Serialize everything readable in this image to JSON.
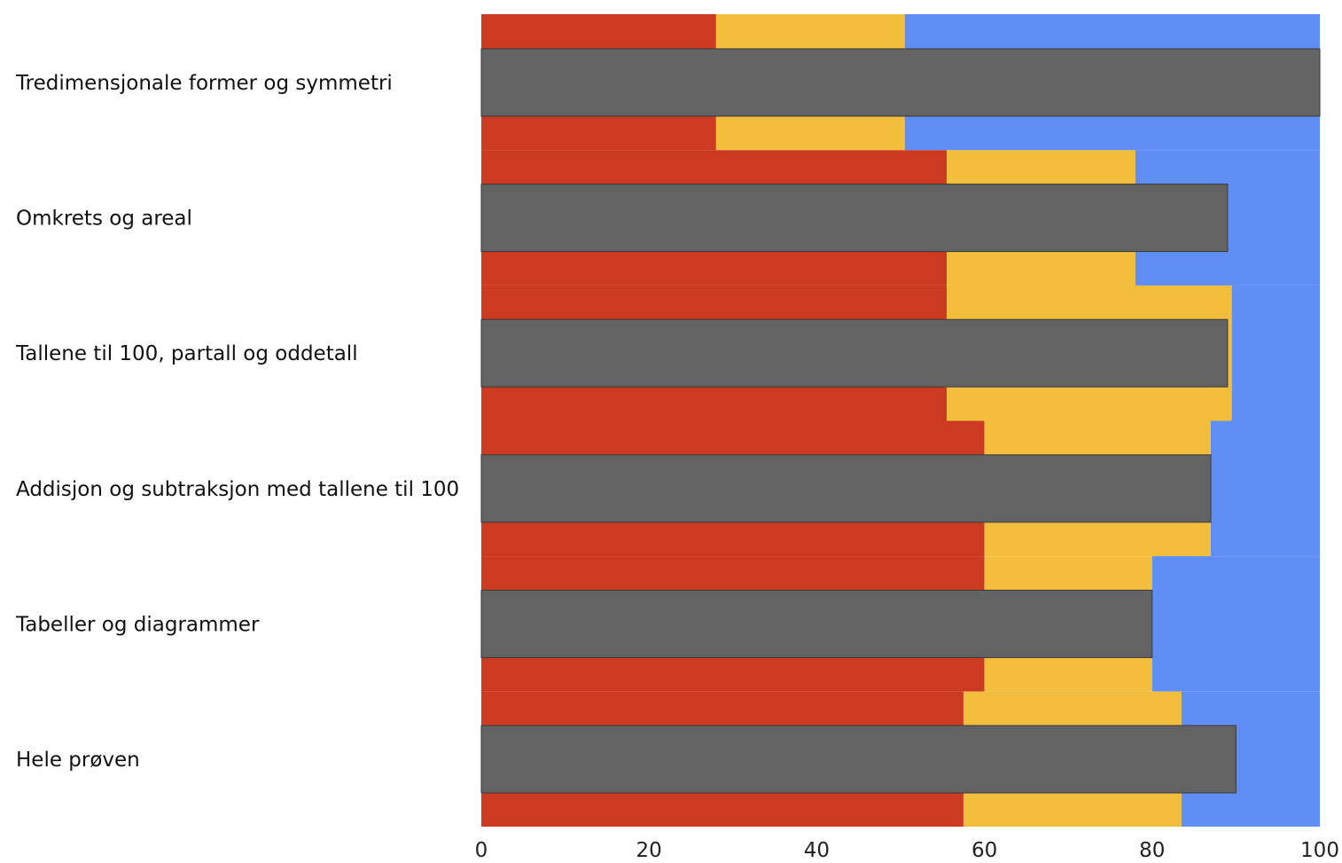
{
  "chart_data": {
    "type": "bar",
    "orientation": "horizontal",
    "categories": [
      "Tredimensjonale former og symmetri",
      "Omkrets og areal",
      "Tallene til 100, partall og oddetall",
      "Addisjon og subtraksjon med tallene til 100",
      "Tabeller og diagrammer",
      "Hele prøven"
    ],
    "x_ticks": [
      "0",
      "20",
      "40",
      "60",
      "80",
      "100"
    ],
    "xlim": [
      0,
      100
    ],
    "legend": "none",
    "grid": false,
    "band_series": {
      "colors": {
        "low": "#CC3A22",
        "mid": "#F2BE3C",
        "high": "#5F8FF5"
      },
      "low": [
        28,
        55.5,
        55.5,
        60,
        60,
        57.5
      ],
      "mid": [
        22.5,
        22.5,
        34,
        27,
        20,
        26
      ]
    },
    "bar_series": {
      "color": "#636363",
      "values": [
        100,
        89,
        89,
        87,
        80,
        90
      ]
    }
  }
}
